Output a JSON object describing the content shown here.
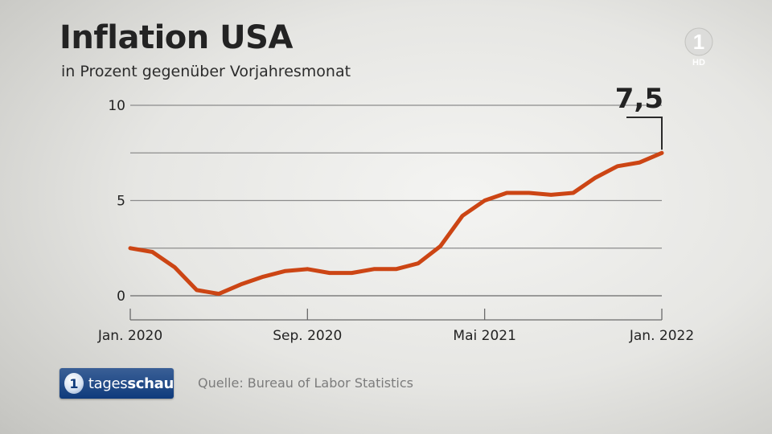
{
  "header": {
    "title": "Inflation USA",
    "subtitle": "in Prozent gegenüber Vorjahresmonat"
  },
  "channel_logo": {
    "number": "1",
    "hd_label": "HD"
  },
  "footer": {
    "brand_prefix": "tages",
    "brand_suffix": "schau",
    "brand_icon_glyph": "1",
    "source": "Quelle: Bureau of Labor Statistics"
  },
  "colors": {
    "line": "#cc4514",
    "grid": "#8c8c8c",
    "text": "#232323"
  },
  "chart_data": {
    "type": "line",
    "title": "Inflation USA",
    "subtitle": "in Prozent gegenüber Vorjahresmonat",
    "xlabel": "",
    "ylabel": "",
    "ylim": [
      0,
      10
    ],
    "yticks": [
      0,
      5,
      10
    ],
    "ygrid": [
      0,
      2.5,
      5,
      7.5,
      10
    ],
    "grid": true,
    "x": [
      "2020-01",
      "2020-02",
      "2020-03",
      "2020-04",
      "2020-05",
      "2020-06",
      "2020-07",
      "2020-08",
      "2020-09",
      "2020-10",
      "2020-11",
      "2020-12",
      "2021-01",
      "2021-02",
      "2021-03",
      "2021-04",
      "2021-05",
      "2021-06",
      "2021-07",
      "2021-08",
      "2021-09",
      "2021-10",
      "2021-11",
      "2021-12",
      "2022-01"
    ],
    "xtick_labels": [
      {
        "x": "2020-01",
        "label": "Jan. 2020"
      },
      {
        "x": "2020-09",
        "label": "Sep. 2020"
      },
      {
        "x": "2021-05",
        "label": "Mai 2021"
      },
      {
        "x": "2022-01",
        "label": "Jan. 2022"
      }
    ],
    "series": [
      {
        "values": [
          2.5,
          2.3,
          1.5,
          0.3,
          0.1,
          0.6,
          1.0,
          1.3,
          1.4,
          1.2,
          1.2,
          1.4,
          1.4,
          1.7,
          2.6,
          4.2,
          5.0,
          5.4,
          5.4,
          5.3,
          5.4,
          6.2,
          6.8,
          7.0,
          7.5
        ]
      }
    ],
    "annotation": {
      "x": "2022-01",
      "label": "7,5"
    }
  }
}
